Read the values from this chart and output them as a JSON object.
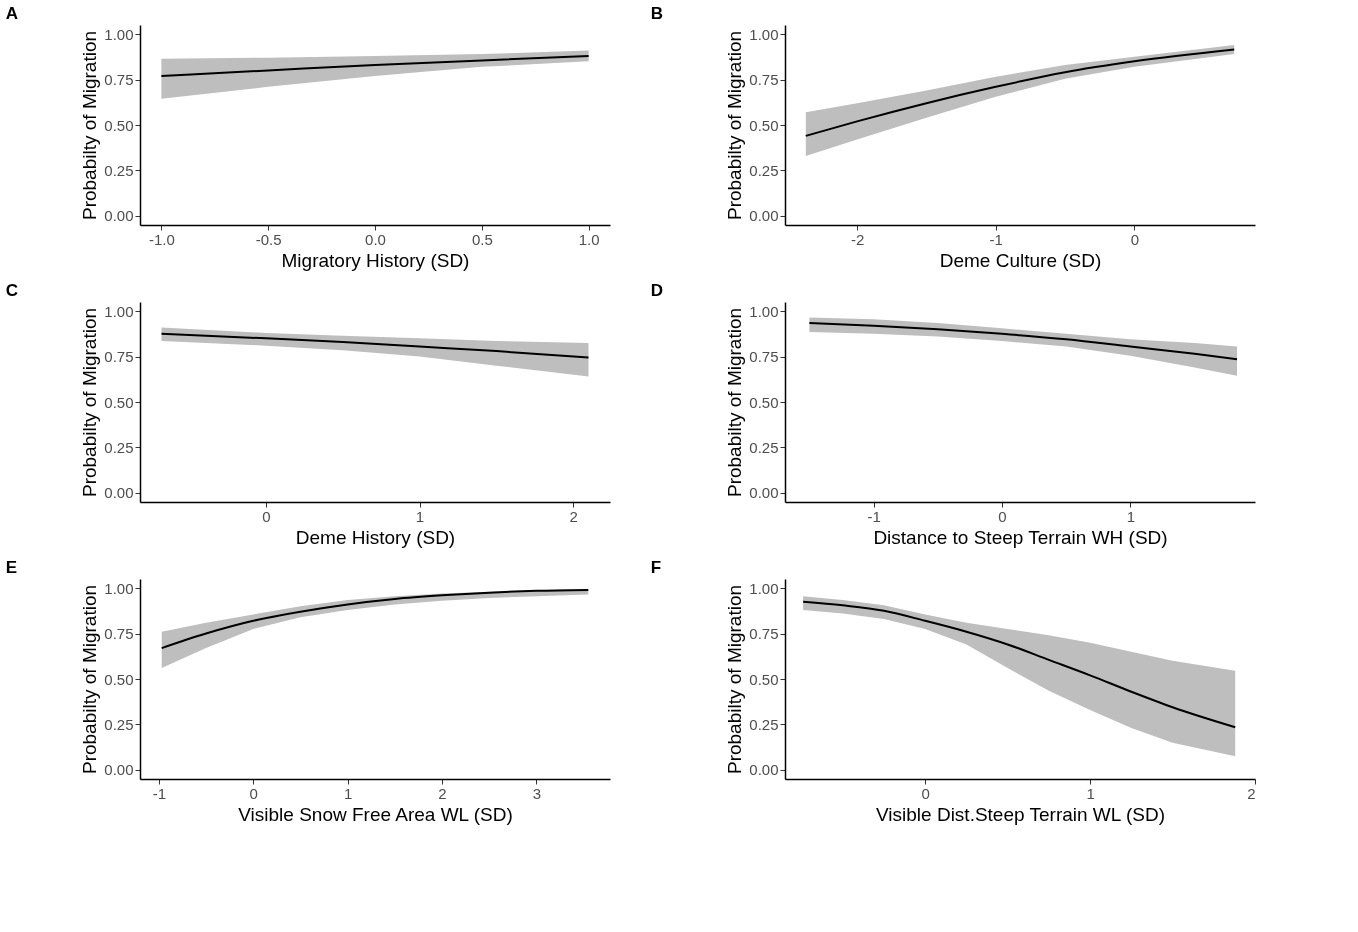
{
  "chart_data": [
    {
      "type": "line",
      "title": "A",
      "xlabel": "Migratory History (SD)",
      "ylabel": "Probabilty of Migration",
      "xlim": [
        -1.1,
        1.1
      ],
      "xticks": [
        {
          "value": -1,
          "label": "-1.0"
        },
        {
          "value": -0.5,
          "label": "-0.5"
        },
        {
          "value": 0,
          "label": "0.0"
        },
        {
          "value": 0.5,
          "label": "0.5"
        },
        {
          "value": 1,
          "label": "1.0"
        }
      ],
      "ylim": [
        -0.05,
        1.05
      ],
      "yticks": [
        {
          "value": 0,
          "label": "0.00"
        },
        {
          "value": 0.25,
          "label": "0.25"
        },
        {
          "value": 0.5,
          "label": "0.50"
        },
        {
          "value": 0.75,
          "label": "0.75"
        },
        {
          "value": 1,
          "label": "1.00"
        }
      ],
      "grid": false,
      "series": [
        {
          "color": "#000000",
          "x": [
            -1,
            -0.5,
            0,
            0.5,
            1
          ],
          "values": [
            0.77,
            0.8,
            0.83,
            0.855,
            0.88
          ],
          "lower": [
            0.645,
            0.71,
            0.77,
            0.82,
            0.85
          ],
          "upper": [
            0.865,
            0.87,
            0.88,
            0.89,
            0.91
          ]
        }
      ]
    },
    {
      "type": "line",
      "title": "B",
      "xlabel": "Deme Culture (SD)",
      "ylabel": "Probabilty of Migration",
      "xlim": [
        -2.52,
        0.87
      ],
      "xticks": [
        -2,
        -1,
        0
      ],
      "ylim": [
        -0.05,
        1.05
      ],
      "yticks": [
        {
          "value": 0,
          "label": "0.00"
        },
        {
          "value": 0.25,
          "label": "0.25"
        },
        {
          "value": 0.5,
          "label": "0.50"
        },
        {
          "value": 0.75,
          "label": "0.75"
        },
        {
          "value": 1,
          "label": "1.00"
        }
      ],
      "grid": false,
      "series": [
        {
          "color": "#000000",
          "x": [
            -2.37,
            -2,
            -1.5,
            -1,
            -0.5,
            0,
            0.72
          ],
          "values": [
            0.44,
            0.52,
            0.62,
            0.71,
            0.79,
            0.85,
            0.915
          ],
          "lower": [
            0.33,
            0.42,
            0.54,
            0.655,
            0.755,
            0.82,
            0.89
          ],
          "upper": [
            0.57,
            0.62,
            0.69,
            0.765,
            0.83,
            0.875,
            0.94
          ]
        }
      ]
    },
    {
      "type": "line",
      "title": "C",
      "xlabel": "Deme History (SD)",
      "ylabel": "Probabilty of Migration",
      "xlim": [
        -0.82,
        2.24
      ],
      "xticks": [
        0,
        1,
        2
      ],
      "ylim": [
        -0.05,
        1.05
      ],
      "yticks": [
        {
          "value": 0,
          "label": "0.00"
        },
        {
          "value": 0.25,
          "label": "0.25"
        },
        {
          "value": 0.5,
          "label": "0.50"
        },
        {
          "value": 0.75,
          "label": "0.75"
        },
        {
          "value": 1,
          "label": "1.00"
        }
      ],
      "grid": false,
      "series": [
        {
          "color": "#000000",
          "x": [
            -0.68,
            0,
            0.5,
            1,
            1.5,
            2.1
          ],
          "values": [
            0.875,
            0.85,
            0.83,
            0.805,
            0.78,
            0.745
          ],
          "lower": [
            0.835,
            0.81,
            0.785,
            0.75,
            0.7,
            0.64
          ],
          "upper": [
            0.91,
            0.88,
            0.865,
            0.85,
            0.835,
            0.825
          ]
        }
      ]
    },
    {
      "type": "line",
      "title": "D",
      "xlabel": "Distance to Steep Terrain WH (SD)",
      "ylabel": "Probabilty of Migration",
      "xlim": [
        -1.69,
        1.97
      ],
      "xticks": [
        -1,
        0,
        1
      ],
      "ylim": [
        -0.05,
        1.05
      ],
      "yticks": [
        {
          "value": 0,
          "label": "0.00"
        },
        {
          "value": 0.25,
          "label": "0.25"
        },
        {
          "value": 0.5,
          "label": "0.50"
        },
        {
          "value": 0.75,
          "label": "0.75"
        },
        {
          "value": 1,
          "label": "1.00"
        }
      ],
      "grid": false,
      "series": [
        {
          "color": "#000000",
          "x": [
            -1.5,
            -1,
            -0.5,
            0,
            0.5,
            1,
            1.5,
            1.83
          ],
          "values": [
            0.935,
            0.92,
            0.9,
            0.875,
            0.845,
            0.805,
            0.765,
            0.735
          ],
          "lower": [
            0.885,
            0.875,
            0.86,
            0.835,
            0.805,
            0.755,
            0.69,
            0.645
          ],
          "upper": [
            0.965,
            0.955,
            0.935,
            0.905,
            0.875,
            0.845,
            0.825,
            0.805
          ]
        }
      ]
    },
    {
      "type": "line",
      "title": "E",
      "xlabel": "Visible Snow Free Area WL (SD)",
      "ylabel": "Probabilty of Migration",
      "xlim": [
        -1.2,
        3.78
      ],
      "xticks": [
        -1,
        0,
        1,
        2,
        3
      ],
      "ylim": [
        -0.05,
        1.05
      ],
      "yticks": [
        {
          "value": 0,
          "label": "0.00"
        },
        {
          "value": 0.25,
          "label": "0.25"
        },
        {
          "value": 0.5,
          "label": "0.50"
        },
        {
          "value": 0.75,
          "label": "0.75"
        },
        {
          "value": 1,
          "label": "1.00"
        }
      ],
      "grid": false,
      "series": [
        {
          "color": "#000000",
          "x": [
            -0.97,
            -0.5,
            0,
            0.5,
            1,
            1.5,
            2,
            2.5,
            3,
            3.55
          ],
          "values": [
            0.67,
            0.75,
            0.82,
            0.87,
            0.91,
            0.94,
            0.96,
            0.975,
            0.985,
            0.99
          ],
          "lower": [
            0.56,
            0.67,
            0.775,
            0.84,
            0.88,
            0.91,
            0.93,
            0.945,
            0.955,
            0.965
          ],
          "upper": [
            0.76,
            0.81,
            0.855,
            0.9,
            0.935,
            0.955,
            0.97,
            0.98,
            0.99,
            0.995
          ]
        }
      ]
    },
    {
      "type": "line",
      "title": "F",
      "xlabel": "Visible Dist.Steep Terrain WL (SD)",
      "ylabel": "Probabilty of Migration",
      "xlim": [
        -0.85,
        2.0
      ],
      "xticks": [
        0,
        1,
        2
      ],
      "ylim": [
        -0.05,
        1.05
      ],
      "yticks": [
        {
          "value": 0,
          "label": "0.00"
        },
        {
          "value": 0.25,
          "label": "0.25"
        },
        {
          "value": 0.5,
          "label": "0.50"
        },
        {
          "value": 0.75,
          "label": "0.75"
        },
        {
          "value": 1,
          "label": "1.00"
        }
      ],
      "grid": false,
      "series": [
        {
          "color": "#000000",
          "x": [
            -0.74,
            -0.5,
            -0.25,
            0,
            0.25,
            0.5,
            0.75,
            1,
            1.25,
            1.5,
            1.88
          ],
          "values": [
            0.925,
            0.905,
            0.875,
            0.82,
            0.76,
            0.69,
            0.605,
            0.52,
            0.43,
            0.345,
            0.235
          ],
          "lower": [
            0.88,
            0.86,
            0.83,
            0.775,
            0.69,
            0.56,
            0.435,
            0.33,
            0.23,
            0.15,
            0.075
          ],
          "upper": [
            0.955,
            0.935,
            0.905,
            0.855,
            0.81,
            0.775,
            0.74,
            0.7,
            0.65,
            0.6,
            0.545
          ]
        }
      ]
    }
  ]
}
